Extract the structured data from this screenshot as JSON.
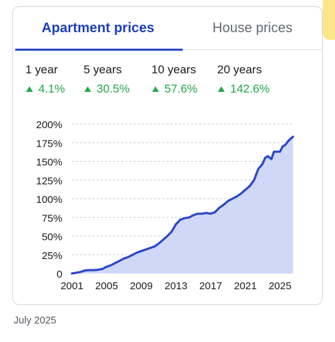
{
  "tabs": {
    "apartment_label": "Apartment prices",
    "house_label": "House prices"
  },
  "stats": [
    {
      "period": "1 year",
      "change": "4.1%"
    },
    {
      "period": "5 years",
      "change": "30.5%"
    },
    {
      "period": "10 years",
      "change": "57.6%"
    },
    {
      "period": "20 years",
      "change": "142.6%"
    }
  ],
  "footer": {
    "date": "July 2025"
  },
  "colors": {
    "accent": "#2b47c9",
    "positive": "#22a843",
    "area_fill": "#cfd8f7",
    "line": "#2b47c9"
  },
  "icons": {
    "trend": "up-triangle-icon"
  },
  "chart_data": {
    "type": "area",
    "xlabel": "",
    "ylabel": "",
    "grid": true,
    "ylim": [
      0,
      200
    ],
    "y_ticks": [
      "0",
      "25%",
      "50%",
      "75%",
      "100%",
      "125%",
      "150%",
      "175%",
      "200%"
    ],
    "y_tick_values": [
      0,
      25,
      50,
      75,
      100,
      125,
      150,
      175,
      200
    ],
    "x_ticks": [
      "2001",
      "2005",
      "2009",
      "2013",
      "2017",
      "2021",
      "2025"
    ],
    "x_tick_values": [
      2001,
      2005,
      2009,
      2013,
      2017,
      2021,
      2025
    ],
    "xlim": [
      2001,
      2026.6
    ],
    "series": [
      {
        "x": [
          2001.0,
          2001.5,
          2002.0,
          2002.5,
          2003.0,
          2003.5,
          2004.0,
          2004.5,
          2005.0,
          2005.5,
          2006.0,
          2006.5,
          2007.0,
          2007.5,
          2008.0,
          2008.5,
          2009.0,
          2009.5,
          2010.0,
          2010.5,
          2011.0,
          2011.5,
          2012.0,
          2012.5,
          2013.0,
          2013.5,
          2014.0,
          2014.5,
          2015.0,
          2015.5,
          2016.0,
          2016.5,
          2017.0,
          2017.5,
          2018.0,
          2018.5,
          2019.0,
          2019.5,
          2020.0,
          2020.5,
          2021.0,
          2021.5,
          2022.0,
          2022.5,
          2023.0,
          2023.3,
          2023.6,
          2024.0,
          2024.3,
          2024.6,
          2025.0,
          2025.3,
          2025.6,
          2026.0,
          2026.5
        ],
        "y": [
          0,
          1,
          2,
          4,
          4.5,
          4.5,
          5,
          6,
          9,
          11,
          14,
          17,
          20,
          22,
          25,
          28,
          30,
          32,
          34,
          36,
          40,
          45,
          50,
          56,
          66,
          72,
          74,
          75,
          78,
          80,
          80,
          81,
          80,
          82,
          88,
          92,
          97,
          100,
          103,
          107,
          112,
          117,
          125,
          140,
          147,
          155,
          157,
          153,
          163,
          163,
          163,
          170,
          172,
          178,
          183
        ]
      }
    ]
  }
}
